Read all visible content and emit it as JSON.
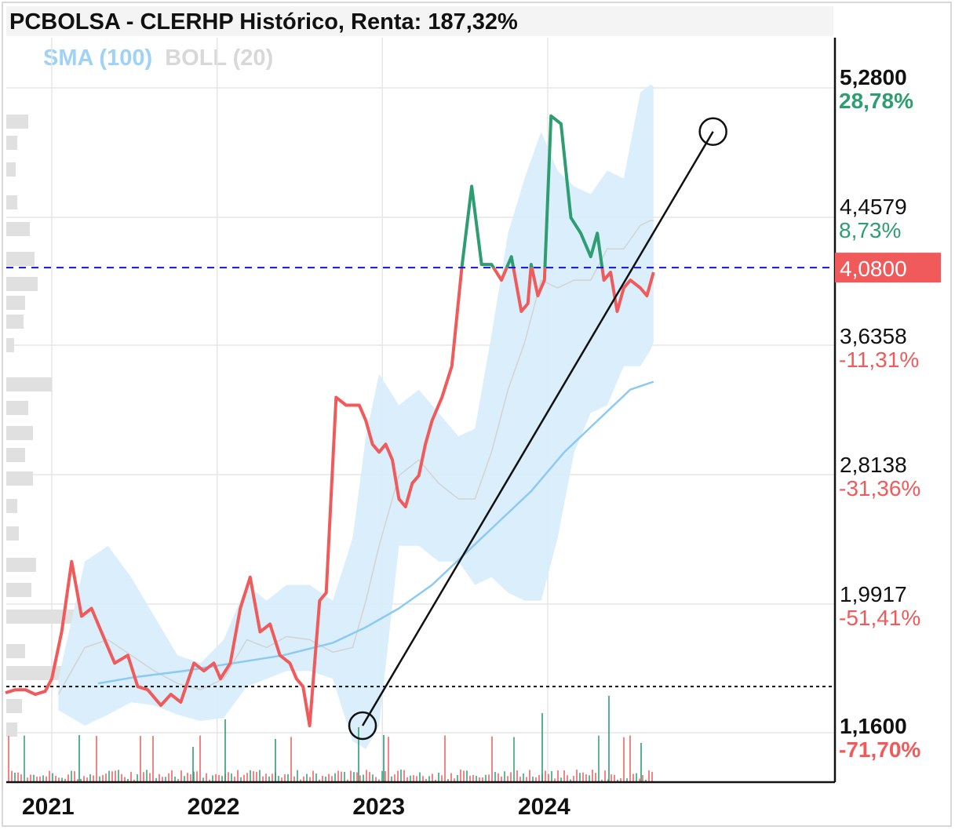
{
  "title": "PCBOLSA - CLERHP Histórico, Renta: 187,32%",
  "legend": {
    "sma": "SMA (100)",
    "boll": "BOLL (20)"
  },
  "colors": {
    "up": "#2e9e72",
    "down": "#f05a5a",
    "sma": "#8ccaf3",
    "boll_band": "#d8edfb",
    "volume_bars": "#e0e0e0",
    "current_line": "#1414d8",
    "current_label_bg": "#f05a5a"
  },
  "chart_data": {
    "type": "line",
    "title": "PCBOLSA - CLERHP Histórico, Renta: 187,32%",
    "y_axis": {
      "min": 1.16,
      "max": 5.28,
      "position": "right",
      "ticks": [
        {
          "value": 5.28,
          "label": "5,2800",
          "pct": "28,78%",
          "bold": true
        },
        {
          "value": 4.4579,
          "label": "4,4579",
          "pct": "8,73%"
        },
        {
          "value": 3.6358,
          "label": "3,6358",
          "pct": "-11,31%"
        },
        {
          "value": 2.8138,
          "label": "2,8138",
          "pct": "-31,36%"
        },
        {
          "value": 1.9917,
          "label": "1,9917",
          "pct": "-51,41%"
        },
        {
          "value": 1.16,
          "label": "1,1600",
          "pct": "-71,70%",
          "bold": true
        }
      ]
    },
    "x_axis": {
      "labels": [
        "2021",
        "2022",
        "2023",
        "2024"
      ],
      "label_dates": [
        2021.0,
        2022.0,
        2023.0,
        2024.0
      ],
      "range": [
        2020.7,
        2025.2
      ]
    },
    "current_price": {
      "value": 4.08,
      "label": "4,0800"
    },
    "reference_level": 1.4,
    "grid": true,
    "series": [
      {
        "name": "CLERHP",
        "x": [
          2020.72,
          2020.78,
          2020.84,
          2020.9,
          2020.96,
          2021.0,
          2021.06,
          2021.12,
          2021.18,
          2021.24,
          2021.32,
          2021.38,
          2021.46,
          2021.52,
          2021.58,
          2021.66,
          2021.72,
          2021.78,
          2021.86,
          2021.92,
          2021.98,
          2022.02,
          2022.08,
          2022.14,
          2022.2,
          2022.26,
          2022.32,
          2022.38,
          2022.44,
          2022.48,
          2022.52,
          2022.56,
          2022.62,
          2022.66,
          2022.72,
          2022.78,
          2022.82,
          2022.86,
          2022.88,
          2022.9,
          2022.94,
          2022.98,
          2023.02,
          2023.06,
          2023.1,
          2023.14,
          2023.18,
          2023.22,
          2023.26,
          2023.3,
          2023.36,
          2023.42,
          2023.48,
          2023.54,
          2023.6,
          2023.66,
          2023.72,
          2023.78,
          2023.84,
          2023.88,
          2023.9,
          2023.94,
          2023.98,
          2024.02,
          2024.08,
          2024.14,
          2024.2,
          2024.26,
          2024.3,
          2024.34,
          2024.38,
          2024.42,
          2024.46,
          2024.5,
          2024.56,
          2024.6,
          2024.64
        ],
        "values": [
          1.36,
          1.38,
          1.38,
          1.35,
          1.37,
          1.45,
          1.75,
          2.2,
          1.85,
          1.9,
          1.7,
          1.55,
          1.6,
          1.4,
          1.38,
          1.28,
          1.35,
          1.3,
          1.55,
          1.5,
          1.55,
          1.45,
          1.55,
          1.9,
          2.1,
          1.75,
          1.8,
          1.6,
          1.55,
          1.45,
          1.4,
          1.15,
          1.95,
          2.0,
          3.25,
          3.2,
          3.2,
          3.2,
          3.15,
          3.1,
          2.95,
          2.9,
          2.95,
          2.85,
          2.6,
          2.55,
          2.7,
          2.75,
          2.95,
          3.1,
          3.25,
          3.45,
          4.08,
          4.6,
          4.1,
          4.1,
          4.0,
          4.15,
          3.8,
          3.85,
          4.1,
          3.9,
          4.0,
          5.05,
          5.0,
          4.4,
          4.3,
          4.15,
          4.3,
          4.0,
          4.05,
          3.8,
          3.95,
          4.0,
          3.95,
          3.9,
          4.05
        ]
      },
      {
        "name": "SMA (100)",
        "x": [
          2021.28,
          2021.5,
          2021.8,
          2022.1,
          2022.4,
          2022.7,
          2022.9,
          2023.1,
          2023.3,
          2023.5,
          2023.7,
          2023.9,
          2024.1,
          2024.3,
          2024.5,
          2024.64
        ],
        "values": [
          1.42,
          1.46,
          1.5,
          1.55,
          1.6,
          1.68,
          1.78,
          1.9,
          2.05,
          2.25,
          2.45,
          2.65,
          2.9,
          3.1,
          3.3,
          3.35
        ]
      }
    ],
    "boll_band": {
      "x": [
        2021.04,
        2021.2,
        2021.34,
        2021.48,
        2021.62,
        2021.76,
        2021.9,
        2022.04,
        2022.18,
        2022.3,
        2022.42,
        2022.56,
        2022.7,
        2022.82,
        2022.9,
        2022.98,
        2023.1,
        2023.22,
        2023.34,
        2023.46,
        2023.56,
        2023.66,
        2023.76,
        2023.86,
        2023.96,
        2024.06,
        2024.16,
        2024.26,
        2024.36,
        2024.46,
        2024.56,
        2024.62,
        2024.64
      ],
      "upper": [
        1.45,
        2.2,
        2.3,
        2.1,
        1.85,
        1.6,
        1.55,
        1.7,
        2.05,
        1.95,
        2.05,
        2.05,
        1.95,
        2.35,
        3.0,
        3.4,
        3.2,
        3.3,
        3.15,
        3.0,
        3.05,
        3.65,
        4.3,
        4.65,
        4.95,
        4.7,
        4.6,
        4.55,
        4.7,
        4.65,
        5.2,
        5.25,
        5.24
      ],
      "lower": [
        1.25,
        1.15,
        1.22,
        1.3,
        1.28,
        1.22,
        1.18,
        1.2,
        1.4,
        1.45,
        1.5,
        1.5,
        1.45,
        1.05,
        1.0,
        1.15,
        2.3,
        2.3,
        2.2,
        2.2,
        2.05,
        2.1,
        2.0,
        1.95,
        1.95,
        2.35,
        2.9,
        3.15,
        3.2,
        3.45,
        3.45,
        3.55,
        3.6
      ],
      "middle": [
        1.35,
        1.65,
        1.7,
        1.6,
        1.5,
        1.42,
        1.38,
        1.45,
        1.7,
        1.65,
        1.72,
        1.7,
        1.62,
        1.65,
        1.95,
        2.3,
        2.75,
        2.85,
        2.7,
        2.6,
        2.6,
        2.9,
        3.3,
        3.6,
        4.0,
        3.95,
        4.0,
        4.0,
        4.2,
        4.2,
        4.35,
        4.38,
        4.38
      ]
    },
    "trendline": {
      "x": [
        2022.88,
        2025.0
      ],
      "values": [
        1.15,
        4.95
      ]
    }
  }
}
